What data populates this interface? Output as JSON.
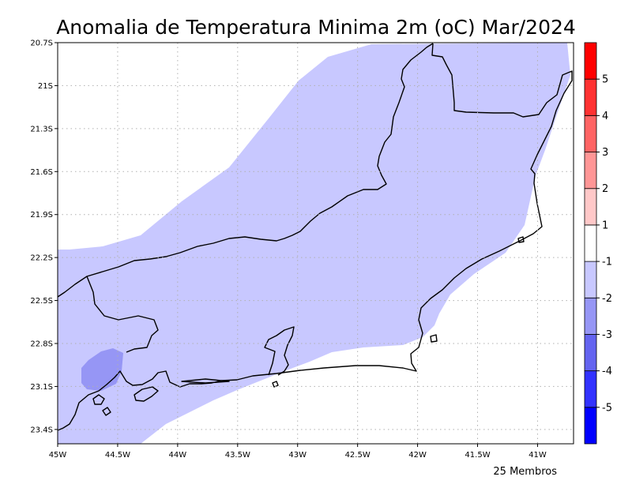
{
  "title": "Anomalia de Temperatura Minima 2m (oC) Mar/2024",
  "footer": "25 Membros",
  "map": {
    "lon_range": [
      -45,
      -40.7
    ],
    "lat_range": [
      -23.5,
      -20.7
    ],
    "lon_ticks": [
      {
        "value": -45,
        "label": "45W"
      },
      {
        "value": -44.5,
        "label": "44.5W"
      },
      {
        "value": -44,
        "label": "44W"
      },
      {
        "value": -43.5,
        "label": "43.5W"
      },
      {
        "value": -43,
        "label": "43W"
      },
      {
        "value": -42.5,
        "label": "42.5W"
      },
      {
        "value": -42,
        "label": "42W"
      },
      {
        "value": -41.5,
        "label": "41.5W"
      },
      {
        "value": -41,
        "label": "41W"
      }
    ],
    "lat_ticks": [
      {
        "value": -20.7,
        "label": "20.7S"
      },
      {
        "value": -21,
        "label": "21S"
      },
      {
        "value": -21.3,
        "label": "21.3S"
      },
      {
        "value": -21.6,
        "label": "21.6S"
      },
      {
        "value": -21.9,
        "label": "21.9S"
      },
      {
        "value": -22.2,
        "label": "22.2S"
      },
      {
        "value": -22.5,
        "label": "22.5S"
      },
      {
        "value": -22.8,
        "label": "22.8S"
      },
      {
        "value": -23.1,
        "label": "23.1S"
      },
      {
        "value": -23.4,
        "label": "23.4S"
      }
    ],
    "shaded_regions": [
      {
        "class": "-1 to -2",
        "color": "#c8c8ff",
        "name": "Rio de Janeiro state region"
      },
      {
        "class": "-2 to -3",
        "color": "#9696f5",
        "name": "southwest pocket near 44.7W"
      }
    ]
  },
  "colorbar": {
    "colors": [
      "#0000ff",
      "#3232ff",
      "#6464f0",
      "#9696f5",
      "#c8c8ff",
      "#ffffff",
      "#ffc8c8",
      "#ff9696",
      "#ff6464",
      "#ff3232",
      "#ff0000"
    ],
    "labels": [
      "-5",
      "-4",
      "-3",
      "-2",
      "-1",
      "1",
      "2",
      "3",
      "4",
      "5"
    ]
  },
  "icons": [
    "none"
  ]
}
